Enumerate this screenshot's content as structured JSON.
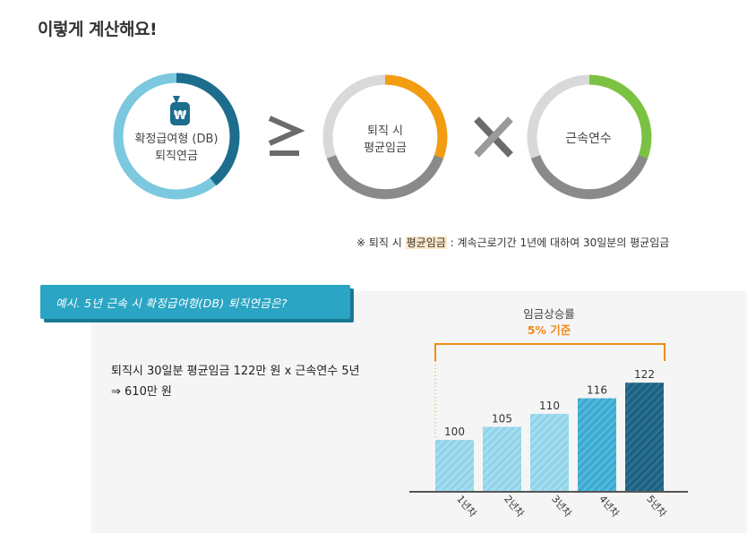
{
  "title": "이렇게 계산해요!",
  "formula": {
    "ring1": {
      "line1": "확정급여형 (DB)",
      "line2": "퇴직연금",
      "icon": "money-bag-won-icon",
      "symbol": "₩"
    },
    "operator1": "≥",
    "ring2": {
      "line1": "퇴직 시",
      "line2": "평균임금"
    },
    "operator2": "×",
    "ring3": {
      "label": "근속연수"
    }
  },
  "colors": {
    "ring1_dark": "#1d6d8c",
    "ring1_light": "#7cc8df",
    "ring2_accent": "#f39c12",
    "ring3_accent": "#7cc242",
    "ring_gray": "#8a8a8a",
    "banner": "#2aa5c4",
    "bracket": "#f08c1a"
  },
  "footnote": {
    "prefix": "※ 퇴직 시 ",
    "highlight": "평균임금",
    "suffix": " : 계속근로기간 1년에 대하여 30일분의 평균임금"
  },
  "example": {
    "banner": "예시. 5년 근속 시 확정급여형(DB) 퇴직연금은?",
    "calc_line1": "퇴직시 30일분 평균임금 122만 원 x 근속연수 5년",
    "calc_line2": "⇒ 610만 원"
  },
  "chart_data": {
    "type": "bar",
    "title": "임금상승률",
    "subtitle": "5% 기준",
    "categories": [
      "1년차",
      "2년차",
      "3년차",
      "4년차",
      "5년차"
    ],
    "values": [
      100,
      105,
      110,
      116,
      122
    ],
    "ylim": [
      0,
      130
    ],
    "grid": false,
    "colors": [
      "#8fd3ea",
      "#8fd3ea",
      "#8fd3ea",
      "#39a9d0",
      "#1d5f7c"
    ]
  }
}
